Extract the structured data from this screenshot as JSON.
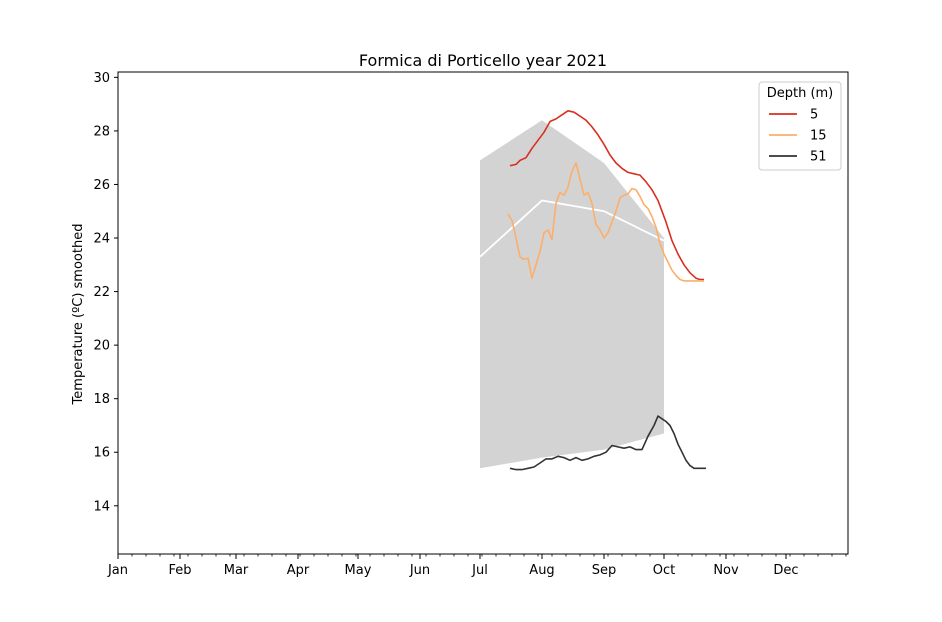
{
  "chart_data": {
    "type": "line",
    "title": "Formica di Porticello year 2021",
    "ylabel": "Temperature (ºC) smoothed",
    "xlabel": "",
    "x_range_doy": [
      0,
      365
    ],
    "ylim": [
      12.2,
      30.2
    ],
    "y_ticks": [
      14,
      16,
      18,
      20,
      22,
      24,
      26,
      28,
      30
    ],
    "x_ticks": [
      {
        "label": "Jan",
        "doy": 0
      },
      {
        "label": "Feb",
        "doy": 31
      },
      {
        "label": "Mar",
        "doy": 59
      },
      {
        "label": "Apr",
        "doy": 90
      },
      {
        "label": "May",
        "doy": 120
      },
      {
        "label": "Jun",
        "doy": 151
      },
      {
        "label": "Jul",
        "doy": 181
      },
      {
        "label": "Aug",
        "doy": 212
      },
      {
        "label": "Sep",
        "doy": 243
      },
      {
        "label": "Oct",
        "doy": 273
      },
      {
        "label": "Nov",
        "doy": 304
      },
      {
        "label": "Dec",
        "doy": 334
      }
    ],
    "legend": {
      "title": "Depth (m)",
      "position": "top-right"
    },
    "climatology": {
      "doy": [
        181,
        212,
        243,
        273
      ],
      "upper": [
        26.9,
        28.4,
        26.8,
        24.0
      ],
      "mean": [
        23.3,
        25.4,
        25.0,
        23.9
      ],
      "lower": [
        15.4,
        15.8,
        16.1,
        16.7
      ],
      "band_color": "#d3d3d3",
      "mean_color": "#ffffff"
    },
    "series": [
      {
        "name": "5",
        "color": "#d7301f",
        "doy": [
          196,
          199,
          201,
          204,
          207,
          210,
          213,
          216,
          219,
          222,
          225,
          228,
          230,
          232,
          234,
          237,
          240,
          243,
          246,
          249,
          252,
          255,
          258,
          261,
          264,
          267,
          270,
          272,
          274,
          277,
          280,
          283,
          286,
          289,
          291,
          293
        ],
        "values": [
          26.7,
          26.75,
          26.9,
          27.0,
          27.35,
          27.65,
          27.95,
          28.35,
          28.45,
          28.6,
          28.75,
          28.7,
          28.6,
          28.5,
          28.4,
          28.15,
          27.85,
          27.5,
          27.1,
          26.8,
          26.6,
          26.45,
          26.4,
          26.35,
          26.1,
          25.8,
          25.4,
          25.0,
          24.6,
          23.9,
          23.4,
          23.0,
          22.7,
          22.5,
          22.45,
          22.45
        ]
      },
      {
        "name": "15",
        "color": "#fdae6b",
        "doy": [
          195,
          197,
          199,
          201,
          203,
          205,
          207,
          209,
          211,
          213,
          215,
          217,
          219,
          221,
          223,
          225,
          227,
          229,
          231,
          233,
          235,
          237,
          239,
          241,
          243,
          245,
          247,
          249,
          251,
          253,
          255,
          257,
          259,
          261,
          263,
          265,
          267,
          269,
          271,
          273,
          275,
          277,
          279,
          281,
          283,
          285,
          287,
          289,
          291,
          293
        ],
        "values": [
          24.9,
          24.65,
          24.0,
          23.3,
          23.2,
          23.25,
          22.5,
          23.0,
          23.5,
          24.2,
          24.3,
          23.95,
          25.3,
          25.7,
          25.6,
          25.9,
          26.5,
          26.8,
          26.2,
          25.6,
          25.7,
          25.3,
          24.5,
          24.3,
          24.0,
          24.2,
          24.6,
          25.0,
          25.5,
          25.6,
          25.65,
          25.85,
          25.8,
          25.55,
          25.25,
          25.1,
          24.8,
          24.4,
          23.8,
          23.4,
          23.1,
          22.8,
          22.6,
          22.45,
          22.4,
          22.4,
          22.4,
          22.4,
          22.4,
          22.4
        ]
      },
      {
        "name": "51",
        "color": "#333333",
        "doy": [
          196,
          199,
          202,
          205,
          208,
          211,
          214,
          217,
          220,
          223,
          226,
          229,
          232,
          235,
          238,
          241,
          244,
          247,
          250,
          253,
          256,
          259,
          262,
          265,
          268,
          270,
          272,
          274,
          276,
          278,
          280,
          282,
          284,
          286,
          288,
          290,
          292,
          294
        ],
        "values": [
          15.4,
          15.35,
          15.35,
          15.4,
          15.45,
          15.6,
          15.75,
          15.75,
          15.85,
          15.8,
          15.7,
          15.8,
          15.7,
          15.75,
          15.85,
          15.9,
          16.0,
          16.25,
          16.2,
          16.15,
          16.2,
          16.1,
          16.1,
          16.6,
          17.0,
          17.35,
          17.25,
          17.15,
          17.0,
          16.7,
          16.3,
          16.0,
          15.7,
          15.5,
          15.4,
          15.4,
          15.4,
          15.4
        ]
      }
    ]
  }
}
